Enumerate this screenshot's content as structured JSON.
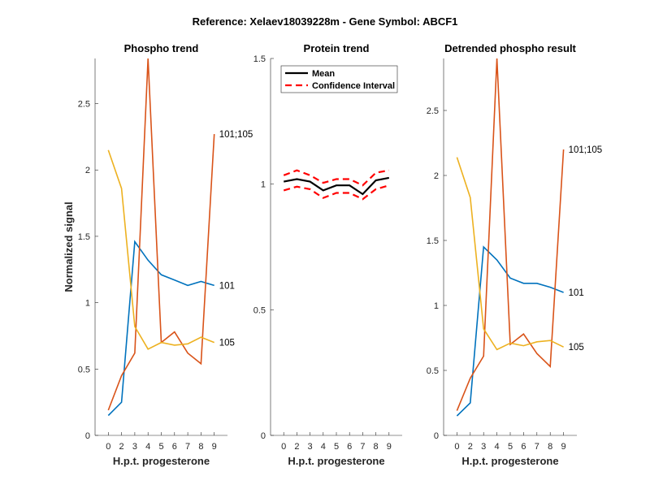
{
  "figure_title": "Reference:  Xelaev18039228m - Gene Symbol:  ABCF1",
  "chart_data": [
    {
      "type": "line",
      "title": "Phospho trend",
      "xlabel": "H.p.t. progesterone",
      "ylabel": "Normalized signal",
      "categories": [
        "0",
        "2",
        "3",
        "4",
        "5",
        "6",
        "7",
        "8",
        "9"
      ],
      "ylim": [
        0,
        2.84
      ],
      "yticks": [
        0,
        0.5,
        1,
        1.5,
        2,
        2.5
      ],
      "ytick_labels": [
        "0",
        "0.5",
        "1",
        "1.5",
        "2",
        "2.5"
      ],
      "grid": false,
      "series": [
        {
          "name": "101",
          "color": "#0072BD",
          "values": [
            0.15,
            0.25,
            1.46,
            1.32,
            1.21,
            1.17,
            1.13,
            1.16,
            1.13
          ]
        },
        {
          "name": "101;105",
          "color": "#D95319",
          "values": [
            0.19,
            0.45,
            0.62,
            2.84,
            0.7,
            0.78,
            0.62,
            0.54,
            2.27
          ]
        },
        {
          "name": "105",
          "color": "#EDB120",
          "values": [
            2.15,
            1.86,
            0.82,
            0.65,
            0.7,
            0.68,
            0.69,
            0.74,
            0.7
          ]
        }
      ]
    },
    {
      "type": "line",
      "title": "Protein trend",
      "xlabel": "H.p.t. progesterone",
      "ylabel": "",
      "categories": [
        "0",
        "2",
        "3",
        "4",
        "5",
        "6",
        "7",
        "8",
        "9"
      ],
      "ylim": [
        0,
        1.5
      ],
      "yticks": [
        0,
        0.5,
        1,
        1.5
      ],
      "ytick_labels": [
        "0",
        "0.5",
        "1",
        "1.5"
      ],
      "grid": false,
      "legend": {
        "placement": "top-left",
        "entries": [
          "Mean",
          "Confidence Interval"
        ]
      },
      "series": [
        {
          "name": "Mean",
          "color": "#000000",
          "style": "solid",
          "values": [
            1.01,
            1.02,
            1.01,
            0.975,
            0.995,
            0.995,
            0.96,
            1.015,
            1.025
          ]
        },
        {
          "name": "Confidence Interval (upper)",
          "color": "#FF0000",
          "style": "dashed",
          "values": [
            1.035,
            1.055,
            1.035,
            1.005,
            1.02,
            1.02,
            0.995,
            1.045,
            1.055
          ]
        },
        {
          "name": "Confidence Interval (lower)",
          "color": "#FF0000",
          "style": "dashed",
          "values": [
            0.975,
            0.99,
            0.98,
            0.945,
            0.965,
            0.965,
            0.94,
            0.98,
            0.995
          ]
        }
      ]
    },
    {
      "type": "line",
      "title": "Detrended phospho result",
      "xlabel": "H.p.t. progesterone",
      "ylabel": "",
      "categories": [
        "0",
        "2",
        "3",
        "4",
        "5",
        "6",
        "7",
        "8",
        "9"
      ],
      "ylim": [
        0,
        2.9
      ],
      "yticks": [
        0,
        0.5,
        1,
        1.5,
        2,
        2.5
      ],
      "ytick_labels": [
        "0",
        "0.5",
        "1",
        "1.5",
        "2",
        "2.5"
      ],
      "grid": false,
      "series": [
        {
          "name": "101",
          "color": "#0072BD",
          "values": [
            0.15,
            0.25,
            1.45,
            1.35,
            1.21,
            1.17,
            1.17,
            1.14,
            1.1
          ]
        },
        {
          "name": "101;105",
          "color": "#D95319",
          "values": [
            0.19,
            0.44,
            0.61,
            2.9,
            0.7,
            0.78,
            0.63,
            0.53,
            2.2
          ]
        },
        {
          "name": "105",
          "color": "#EDB120",
          "values": [
            2.14,
            1.83,
            0.82,
            0.66,
            0.71,
            0.69,
            0.72,
            0.73,
            0.68
          ]
        }
      ]
    }
  ]
}
